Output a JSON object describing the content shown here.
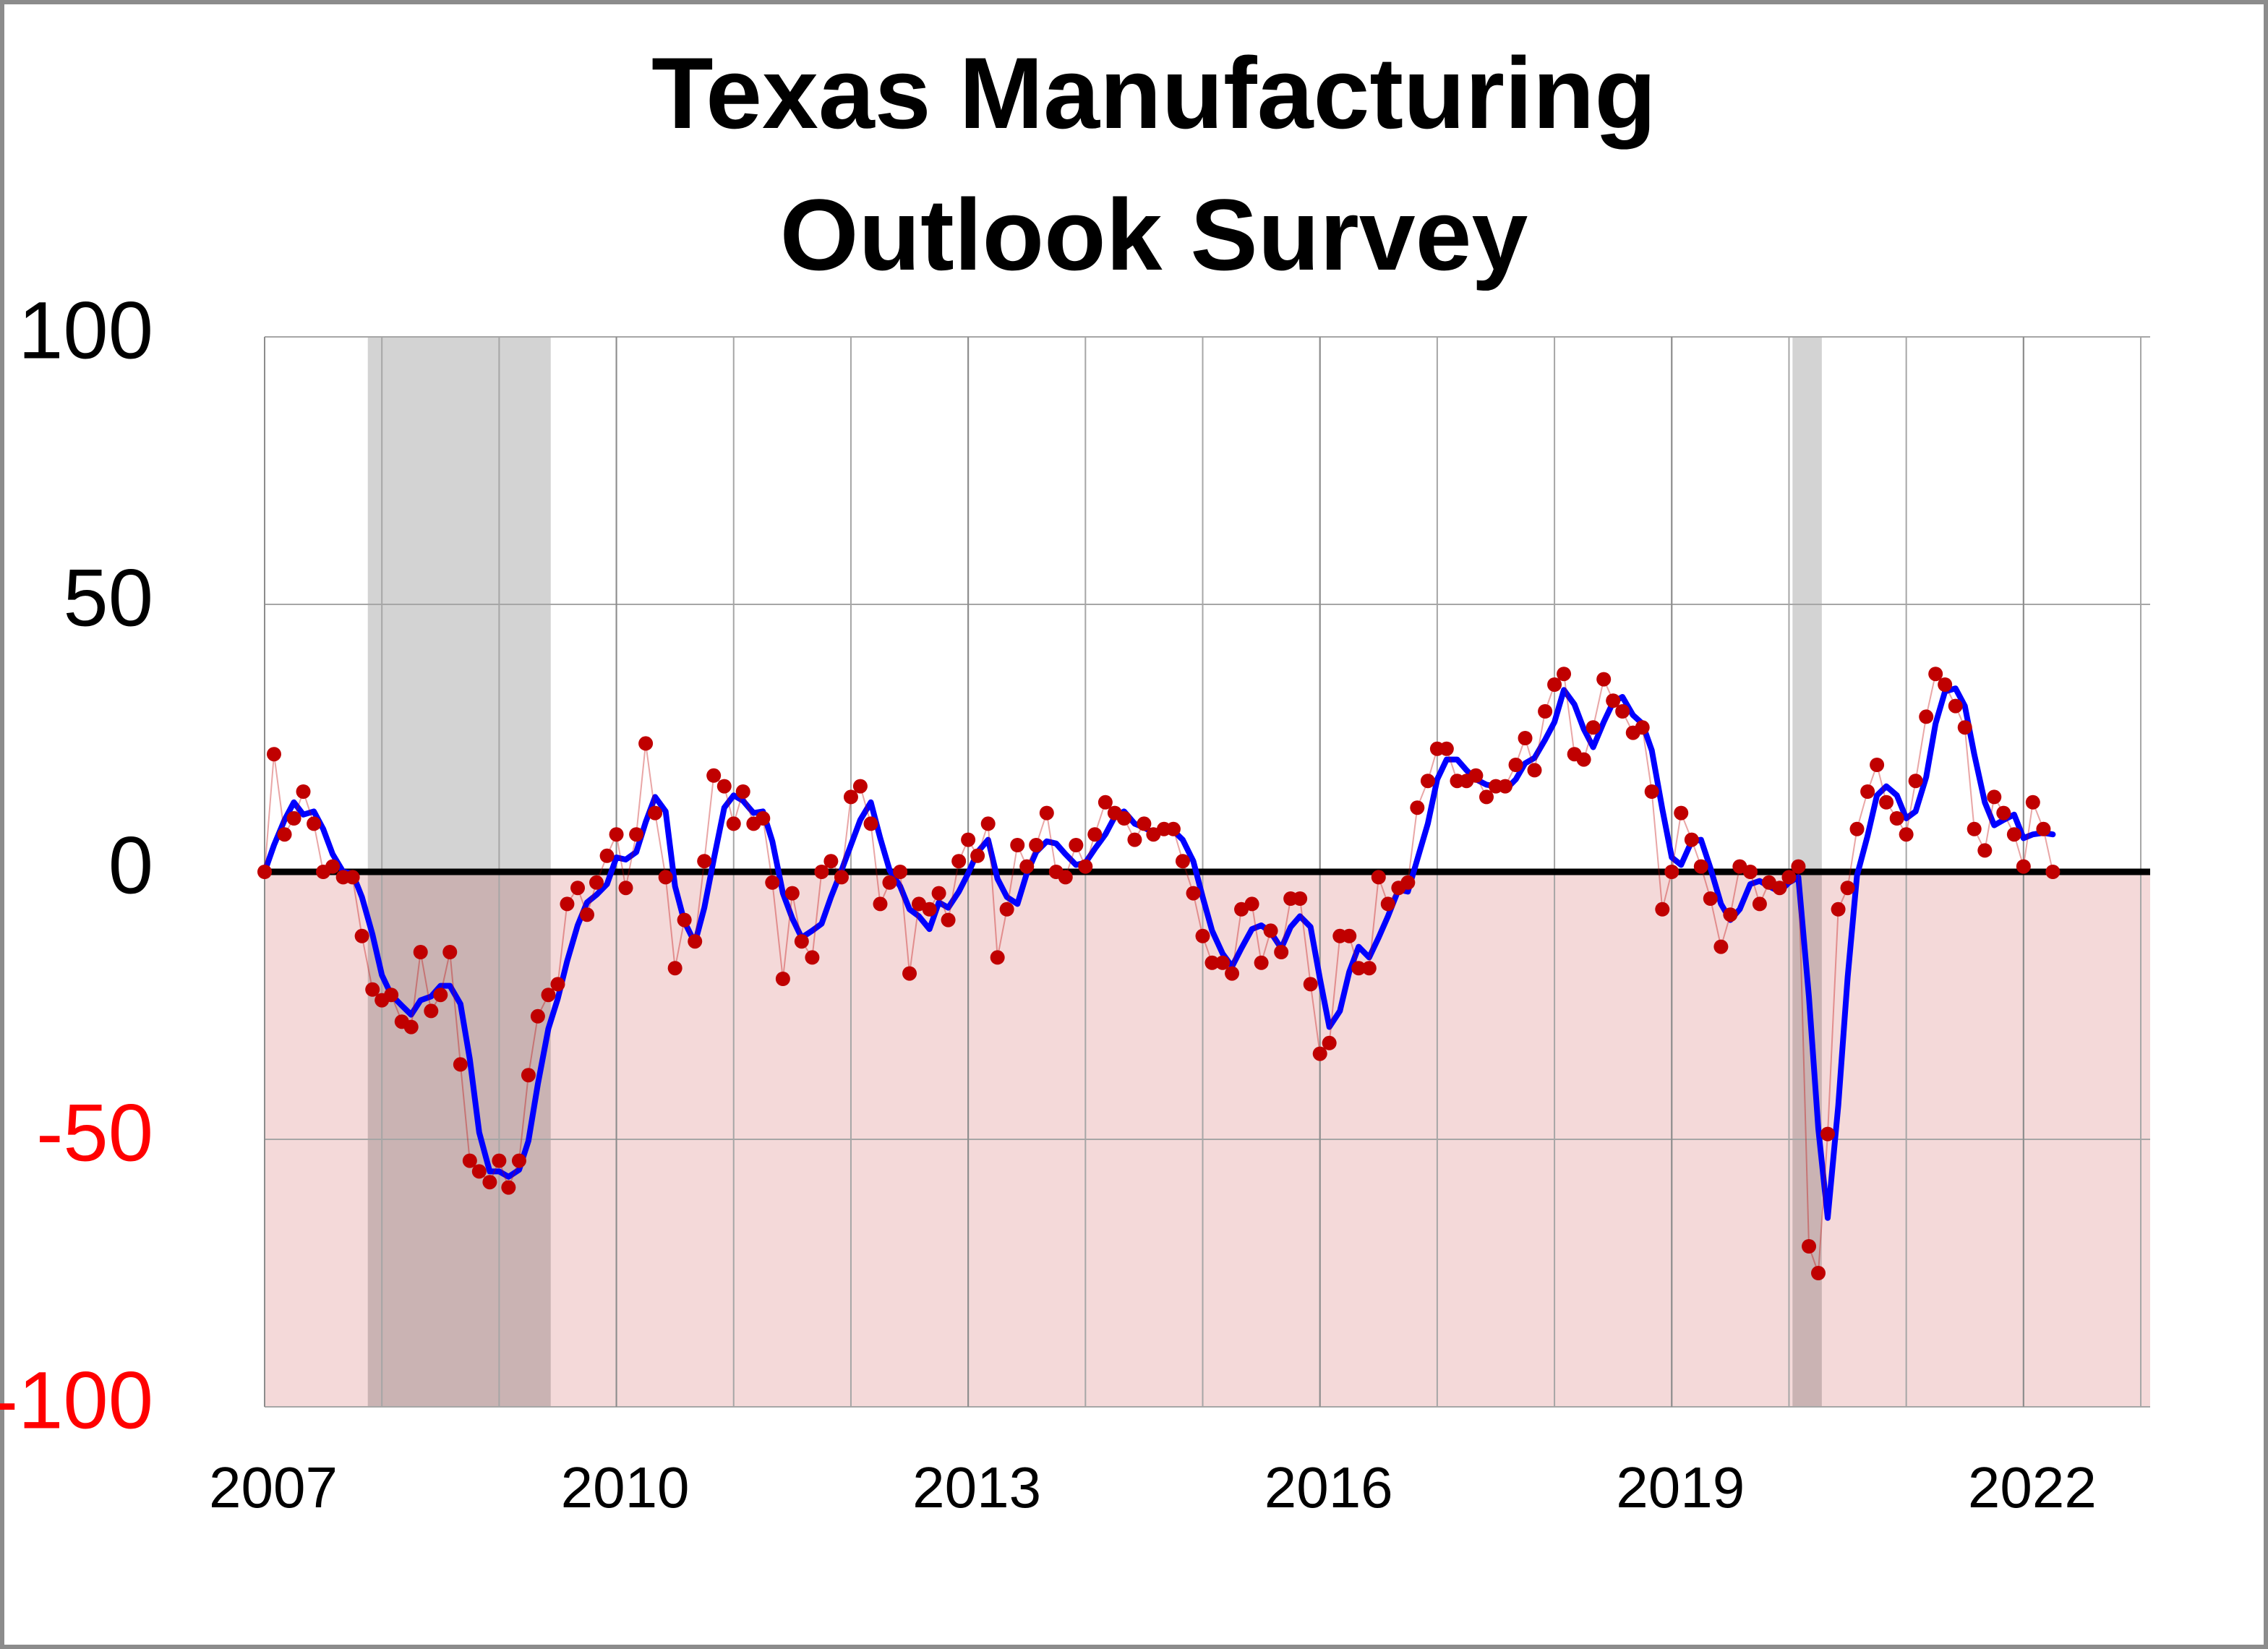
{
  "chart_data": {
    "type": "line",
    "title": [
      "Texas Manufacturing",
      "Outlook Survey"
    ],
    "xlim": [
      2007,
      2023.08
    ],
    "ylim": [
      -100,
      100
    ],
    "xticks": [
      2007,
      2010,
      2013,
      2016,
      2019,
      2022
    ],
    "yticks": [
      -100,
      -50,
      0,
      50,
      100
    ],
    "xgrid": [
      2008,
      2009,
      2010,
      2011,
      2012,
      2013,
      2014,
      2015,
      2016,
      2017,
      2018,
      2019,
      2020,
      2021,
      2022,
      2023
    ],
    "grid": true,
    "zero_line": true,
    "negative_fill": "#f4d9d9",
    "negative_tick_color": "#ff0000",
    "recession_color": "#c8c8c8",
    "recessions": [
      [
        2007.88,
        2009.44
      ],
      [
        2020.03,
        2020.28
      ]
    ],
    "x": [
      2007.0,
      2007.08,
      2007.17,
      2007.25,
      2007.33,
      2007.42,
      2007.5,
      2007.58,
      2007.67,
      2007.75,
      2007.83,
      2007.92,
      2008.0,
      2008.08,
      2008.17,
      2008.25,
      2008.33,
      2008.42,
      2008.5,
      2008.58,
      2008.67,
      2008.75,
      2008.83,
      2008.92,
      2009.0,
      2009.08,
      2009.17,
      2009.25,
      2009.33,
      2009.42,
      2009.5,
      2009.58,
      2009.67,
      2009.75,
      2009.83,
      2009.92,
      2010.0,
      2010.08,
      2010.17,
      2010.25,
      2010.33,
      2010.42,
      2010.5,
      2010.58,
      2010.67,
      2010.75,
      2010.83,
      2010.92,
      2011.0,
      2011.08,
      2011.17,
      2011.25,
      2011.33,
      2011.42,
      2011.5,
      2011.58,
      2011.67,
      2011.75,
      2011.83,
      2011.92,
      2012.0,
      2012.08,
      2012.17,
      2012.25,
      2012.33,
      2012.42,
      2012.5,
      2012.58,
      2012.67,
      2012.75,
      2012.83,
      2012.92,
      2013.0,
      2013.08,
      2013.17,
      2013.25,
      2013.33,
      2013.42,
      2013.5,
      2013.58,
      2013.67,
      2013.75,
      2013.83,
      2013.92,
      2014.0,
      2014.08,
      2014.17,
      2014.25,
      2014.33,
      2014.42,
      2014.5,
      2014.58,
      2014.67,
      2014.75,
      2014.83,
      2014.92,
      2015.0,
      2015.08,
      2015.17,
      2015.25,
      2015.33,
      2015.42,
      2015.5,
      2015.58,
      2015.67,
      2015.75,
      2015.83,
      2015.92,
      2016.0,
      2016.08,
      2016.17,
      2016.25,
      2016.33,
      2016.42,
      2016.5,
      2016.58,
      2016.67,
      2016.75,
      2016.83,
      2016.92,
      2017.0,
      2017.08,
      2017.17,
      2017.25,
      2017.33,
      2017.42,
      2017.5,
      2017.58,
      2017.67,
      2017.75,
      2017.83,
      2017.92,
      2018.0,
      2018.08,
      2018.17,
      2018.25,
      2018.33,
      2018.42,
      2018.5,
      2018.58,
      2018.67,
      2018.75,
      2018.83,
      2018.92,
      2019.0,
      2019.08,
      2019.17,
      2019.25,
      2019.33,
      2019.42,
      2019.5,
      2019.58,
      2019.67,
      2019.75,
      2019.83,
      2019.92,
      2020.0,
      2020.08,
      2020.17,
      2020.25,
      2020.33,
      2020.42,
      2020.5,
      2020.58,
      2020.67,
      2020.75,
      2020.83,
      2020.92,
      2021.0,
      2021.08,
      2021.17,
      2021.25,
      2021.33,
      2021.42,
      2021.5,
      2021.58,
      2021.67,
      2021.75,
      2021.83,
      2021.92,
      2022.0,
      2022.08,
      2022.17,
      2022.25
    ],
    "series": [
      {
        "style": "markers",
        "color": "#c00000",
        "values": [
          0,
          22,
          7,
          10,
          15,
          9,
          0,
          1,
          -1,
          -1,
          -12,
          -22,
          -24,
          -23,
          -28,
          -29,
          -15,
          -26,
          -23,
          -15,
          -36,
          -54,
          -56,
          -58,
          -54,
          -59,
          -54,
          -38,
          -27,
          -23,
          -21,
          -6,
          -3,
          -8,
          -2,
          3,
          7,
          -3,
          7,
          24,
          11,
          -1,
          -18,
          -9,
          -13,
          2,
          18,
          16,
          9,
          15,
          9,
          10,
          -2,
          -20,
          -4,
          -13,
          -16,
          0,
          2,
          -1,
          14,
          16,
          9,
          -6,
          -2,
          0,
          -19,
          -6,
          -7,
          -4,
          -9,
          2,
          6,
          3,
          9,
          -16,
          -7,
          5,
          1,
          5,
          11,
          0,
          -1,
          5,
          1,
          7,
          13,
          11,
          10,
          6,
          9,
          7,
          8,
          8,
          2,
          -4,
          -12,
          -17,
          -17,
          -19,
          -7,
          -6,
          -17,
          -11,
          -15,
          -5,
          -5,
          -21,
          -34,
          -32,
          -12,
          -12,
          -18,
          -18,
          -1,
          -6,
          -3,
          -2,
          12,
          17,
          23,
          23,
          17,
          17,
          18,
          14,
          16,
          16,
          20,
          25,
          19,
          30,
          35,
          37,
          22,
          21,
          27,
          36,
          32,
          30,
          26,
          27,
          15,
          -7,
          0,
          11,
          6,
          1,
          -5,
          -14,
          -8,
          1,
          0,
          -6,
          -2,
          -3,
          -1,
          1,
          -70,
          -75,
          -49,
          -7,
          -3,
          8,
          15,
          20,
          13,
          10,
          7,
          17,
          29,
          37,
          35,
          31,
          27,
          8,
          4,
          14,
          11,
          7,
          1,
          13,
          8,
          0
        ]
      },
      {
        "style": "line",
        "color": "#0000ff",
        "values": [
          0,
          5,
          9.7,
          13,
          10.7,
          11.3,
          8,
          3.3,
          0,
          -0.3,
          -4.7,
          -11.7,
          -19.3,
          -23,
          -25,
          -26.7,
          -24,
          -23.3,
          -21.3,
          -21.3,
          -24.7,
          -35,
          -48.7,
          -56,
          -56,
          -57,
          -55.7,
          -50.3,
          -39.7,
          -29.3,
          -23.7,
          -16.7,
          -10,
          -5.7,
          -4.3,
          -2.3,
          2.7,
          2.3,
          3.7,
          9.3,
          14,
          11.3,
          -2.7,
          -9.3,
          -13.3,
          -6.7,
          2.3,
          12,
          14.3,
          13.3,
          11,
          11.3,
          5.7,
          -4,
          -8.7,
          -12.3,
          -11,
          -9.7,
          -4.7,
          0.3,
          5,
          9.7,
          13,
          6.3,
          0.3,
          -2.7,
          -7,
          -8.3,
          -10.7,
          -5.7,
          -6.7,
          -3.7,
          -0.3,
          3.7,
          6,
          -1.3,
          -4.7,
          -6,
          -0.3,
          3.7,
          5.7,
          5.3,
          3.3,
          1.3,
          1.7,
          4.3,
          7,
          10.3,
          11.3,
          9,
          8.3,
          7.3,
          8,
          7.7,
          6,
          2,
          -4.7,
          -11,
          -15.3,
          -17.7,
          -14.3,
          -10.7,
          -10,
          -11.3,
          -14.3,
          -10.3,
          -8.3,
          -10.3,
          -20,
          -29,
          -26,
          -18.7,
          -14,
          -16,
          -12.3,
          -8.3,
          -3.3,
          -3.7,
          2.3,
          9,
          17.3,
          21,
          21,
          19,
          17.3,
          16.3,
          16,
          15.3,
          17.3,
          20.3,
          21.3,
          24.7,
          28,
          34,
          31.3,
          26.7,
          23.3,
          28,
          31.7,
          32.7,
          29.3,
          27.7,
          22.7,
          11.7,
          2.7,
          1.3,
          5.7,
          6,
          0.7,
          -6,
          -9,
          -7,
          -2.3,
          -1.7,
          -2.7,
          -3.7,
          -2,
          -1,
          -23.3,
          -48,
          -64.7,
          -43.7,
          -19.7,
          -0.7,
          6.7,
          14.3,
          16,
          14.3,
          10,
          11.3,
          17.7,
          27.7,
          33.7,
          34.3,
          31,
          22,
          13,
          8.7,
          9.7,
          10.7,
          6.3,
          7,
          7.3,
          7
        ]
      }
    ]
  }
}
